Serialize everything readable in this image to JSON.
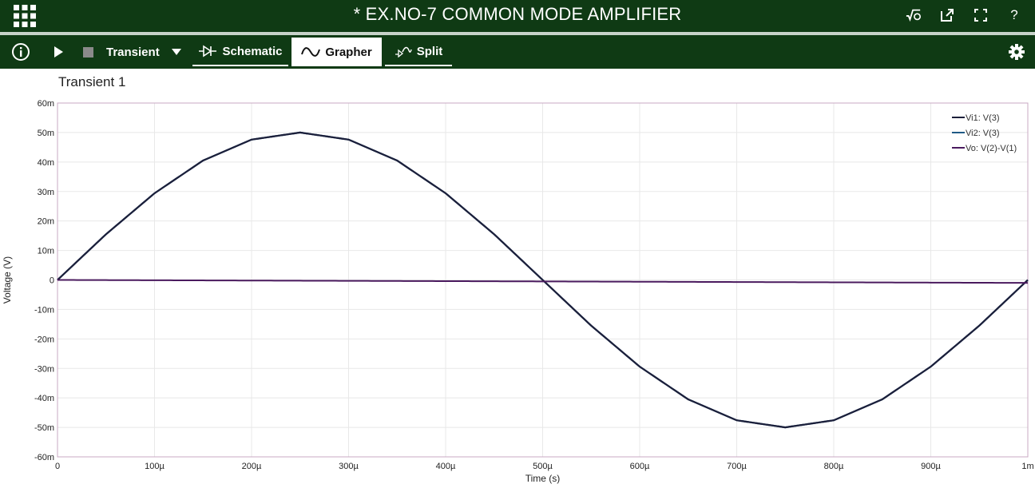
{
  "app": {
    "title": "* EX.NO-7 COMMON MODE AMPLIFIER"
  },
  "toolbar": {
    "analysis": "Transient",
    "tabs": [
      {
        "label": "Schematic",
        "active": false
      },
      {
        "label": "Grapher",
        "active": true
      },
      {
        "label": "Split",
        "active": false
      }
    ]
  },
  "graph": {
    "title": "Transient 1"
  },
  "chart_data": {
    "type": "line",
    "title": "Transient 1",
    "xlabel": "Time (s)",
    "ylabel": "Voltage (V)",
    "xlim": [
      0,
      0.001
    ],
    "ylim": [
      -0.06,
      0.06
    ],
    "grid": true,
    "legend_placement": "top-right",
    "x_ticks": [
      0,
      0.0001,
      0.0002,
      0.0003,
      0.0004,
      0.0005,
      0.0006,
      0.0007,
      0.0008,
      0.0009,
      0.001
    ],
    "x_tick_labels": [
      "0",
      "100µ",
      "200µ",
      "300µ",
      "400µ",
      "500µ",
      "600µ",
      "700µ",
      "800µ",
      "900µ",
      "1m"
    ],
    "y_ticks": [
      0.06,
      0.05,
      0.04,
      0.03,
      0.02,
      0.01,
      0,
      -0.01,
      -0.02,
      -0.03,
      -0.04,
      -0.05,
      -0.06
    ],
    "y_tick_labels": [
      "60m",
      "50m",
      "40m",
      "30m",
      "20m",
      "10m",
      "0",
      "-10m",
      "-20m",
      "-30m",
      "-40m",
      "-50m",
      "-60m"
    ],
    "x": [
      0,
      5e-05,
      0.0001,
      0.00015,
      0.0002,
      0.00025,
      0.0003,
      0.00035,
      0.0004,
      0.00045,
      0.0005,
      0.00055,
      0.0006,
      0.00065,
      0.0007,
      0.00075,
      0.0008,
      0.00085,
      0.0009,
      0.00095,
      0.001
    ],
    "series": [
      {
        "name": "Vi1: V(3)",
        "color": "#1c1f3a",
        "values": [
          0,
          0.0155,
          0.0294,
          0.0405,
          0.0476,
          0.05,
          0.0476,
          0.0405,
          0.0294,
          0.0155,
          0,
          -0.0155,
          -0.0294,
          -0.0405,
          -0.0476,
          -0.05,
          -0.0476,
          -0.0405,
          -0.0294,
          -0.0155,
          0
        ]
      },
      {
        "name": "Vi2: V(3)",
        "color": "#1f5a86",
        "values": [
          0,
          0.0155,
          0.0294,
          0.0405,
          0.0476,
          0.05,
          0.0476,
          0.0405,
          0.0294,
          0.0155,
          0,
          -0.0155,
          -0.0294,
          -0.0405,
          -0.0476,
          -0.05,
          -0.0476,
          -0.0405,
          -0.0294,
          -0.0155,
          0
        ]
      },
      {
        "name": "Vo: V(2)-V(1)",
        "color": "#4a1a5e",
        "values": [
          0,
          -5e-05,
          -0.0001,
          -0.00015,
          -0.0002,
          -0.00025,
          -0.0003,
          -0.00035,
          -0.0004,
          -0.00045,
          -0.0005,
          -0.00055,
          -0.0006,
          -0.00065,
          -0.0007,
          -0.00075,
          -0.0008,
          -0.00085,
          -0.0009,
          -0.00095,
          -0.001
        ]
      }
    ]
  }
}
